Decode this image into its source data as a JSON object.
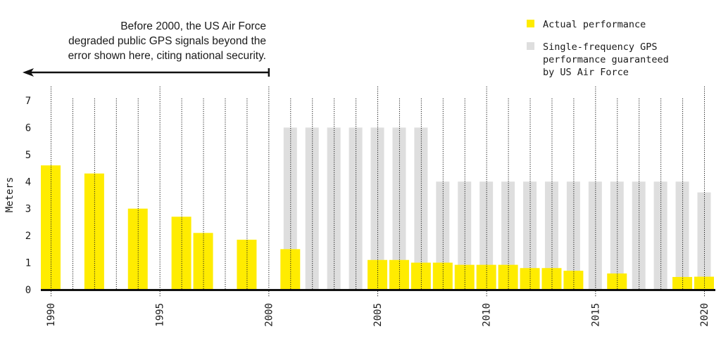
{
  "annotation": {
    "lines": [
      "Before 2000, the US Air Force",
      "degraded public GPS signals beyond the",
      "error shown here, citing national security."
    ],
    "arrow_from_year": 2000,
    "arrow_direction": "left"
  },
  "colors": {
    "actual": "#ffec00",
    "guaranteed": "#dedede",
    "axis": "#111111",
    "grid": "#222222",
    "text": "#1a1a1a"
  },
  "chart_data": {
    "type": "bar",
    "title": "",
    "xlabel": "",
    "ylabel": "Meters",
    "ylim": [
      0,
      7
    ],
    "yticks": [
      0,
      1,
      2,
      3,
      4,
      5,
      6,
      7
    ],
    "xlim": [
      1990,
      2020
    ],
    "xticks": [
      1990,
      1995,
      2000,
      2005,
      2010,
      2015,
      2020
    ],
    "grid": "vertical dotted line per year",
    "legend_position": "top-right",
    "legend": [
      {
        "key": "actual",
        "label_lines": [
          "Actual performance"
        ]
      },
      {
        "key": "guaranteed",
        "label_lines": [
          "Single-frequency GPS",
          "performance guaranteed",
          "by US Air Force"
        ]
      }
    ],
    "series": [
      {
        "name": "Single-frequency GPS performance guaranteed by US Air Force",
        "key": "guaranteed",
        "points": [
          {
            "year": 2001,
            "value": 6
          },
          {
            "year": 2002,
            "value": 6
          },
          {
            "year": 2003,
            "value": 6
          },
          {
            "year": 2004,
            "value": 6
          },
          {
            "year": 2005,
            "value": 6
          },
          {
            "year": 2006,
            "value": 6
          },
          {
            "year": 2007,
            "value": 6
          },
          {
            "year": 2008,
            "value": 4
          },
          {
            "year": 2009,
            "value": 4
          },
          {
            "year": 2010,
            "value": 4
          },
          {
            "year": 2011,
            "value": 4
          },
          {
            "year": 2012,
            "value": 4
          },
          {
            "year": 2013,
            "value": 4
          },
          {
            "year": 2014,
            "value": 4
          },
          {
            "year": 2015,
            "value": 4
          },
          {
            "year": 2016,
            "value": 4
          },
          {
            "year": 2017,
            "value": 4
          },
          {
            "year": 2018,
            "value": 4
          },
          {
            "year": 2019,
            "value": 4
          },
          {
            "year": 2020,
            "value": 3.6
          }
        ]
      },
      {
        "name": "Actual performance",
        "key": "actual",
        "points": [
          {
            "year": 1990,
            "value": 4.6
          },
          {
            "year": 1992,
            "value": 4.3
          },
          {
            "year": 1994,
            "value": 3.0
          },
          {
            "year": 1996,
            "value": 2.7
          },
          {
            "year": 1997,
            "value": 2.1
          },
          {
            "year": 1999,
            "value": 1.85
          },
          {
            "year": 2001,
            "value": 1.5
          },
          {
            "year": 2005,
            "value": 1.1
          },
          {
            "year": 2006,
            "value": 1.1
          },
          {
            "year": 2007,
            "value": 1.0
          },
          {
            "year": 2008,
            "value": 1.0
          },
          {
            "year": 2009,
            "value": 0.92
          },
          {
            "year": 2010,
            "value": 0.92
          },
          {
            "year": 2011,
            "value": 0.92
          },
          {
            "year": 2012,
            "value": 0.8
          },
          {
            "year": 2013,
            "value": 0.8
          },
          {
            "year": 2014,
            "value": 0.7
          },
          {
            "year": 2016,
            "value": 0.6
          },
          {
            "year": 2019,
            "value": 0.47
          },
          {
            "year": 2020,
            "value": 0.48
          }
        ]
      }
    ]
  }
}
